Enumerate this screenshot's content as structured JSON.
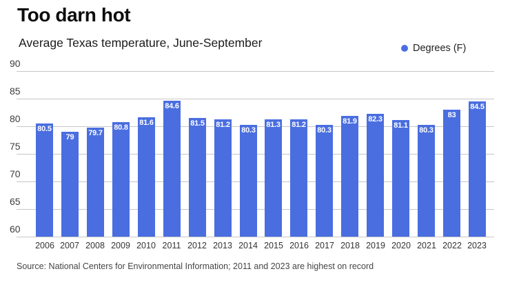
{
  "header": {
    "title": "Too darn hot",
    "subtitle": "Average Texas temperature, June-September"
  },
  "legend": {
    "label": "Degrees (F)"
  },
  "source": "Source: National Centers for Environmental Information; 2011 and 2023 are highest on record",
  "colors": {
    "bar": "#4a6ee0",
    "gridline": "#c6c6c6",
    "value_label": "#ffffff"
  },
  "chart_data": {
    "type": "bar",
    "title": "Too darn hot",
    "subtitle": "Average Texas temperature, June-September",
    "categories": [
      "2006",
      "2007",
      "2008",
      "2009",
      "2010",
      "2011",
      "2012",
      "2013",
      "2014",
      "2015",
      "2016",
      "2017",
      "2018",
      "2019",
      "2020",
      "2021",
      "2022",
      "2023"
    ],
    "values": [
      80.5,
      79,
      79.7,
      80.8,
      81.6,
      84.6,
      81.5,
      81.2,
      80.3,
      81.3,
      81.2,
      80.3,
      81.9,
      82.3,
      81.1,
      80.3,
      83,
      84.5
    ],
    "ylabel": "Degrees (F)",
    "ylim": [
      60,
      90
    ],
    "yticks": [
      60,
      65,
      70,
      75,
      80,
      85,
      90
    ],
    "grid": true,
    "legend_position": "top-right",
    "value_labels": true
  }
}
